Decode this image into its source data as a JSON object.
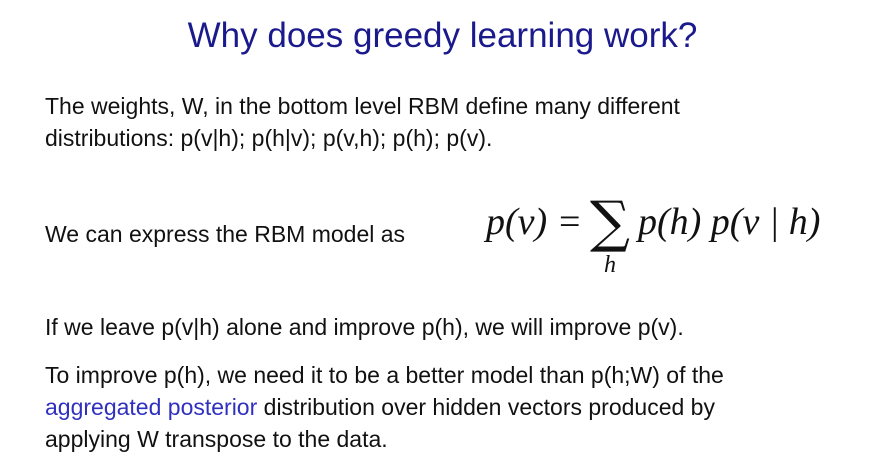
{
  "slide": {
    "title": "Why does greedy learning work?",
    "para1": {
      "line1": "The weights, W,  in the bottom level RBM define many different",
      "line2": "distributions:  p(v|h);  p(h|v);  p(v,h);  p(h);  p(v)."
    },
    "para2": {
      "label": "We can express the RBM model as",
      "formula": {
        "lhs": "p(v)",
        "equals": "=",
        "sum_symbol": "∑",
        "sum_subscript": "h",
        "rhs": "p(h)  p(v | h)"
      }
    },
    "para3": "If we leave p(v|h) alone and improve p(h), we will improve p(v).",
    "para4": {
      "line1": "To improve p(h), we need it to be a better model than p(h;W) of the",
      "line2_highlight": "aggregated posterior",
      "line2_rest": " distribution over hidden vectors produced by",
      "line3": "applying W transpose to the data."
    }
  },
  "colors": {
    "title": "#1a1a8c",
    "highlight": "#3030c0",
    "text": "#111111",
    "background": "#ffffff"
  }
}
